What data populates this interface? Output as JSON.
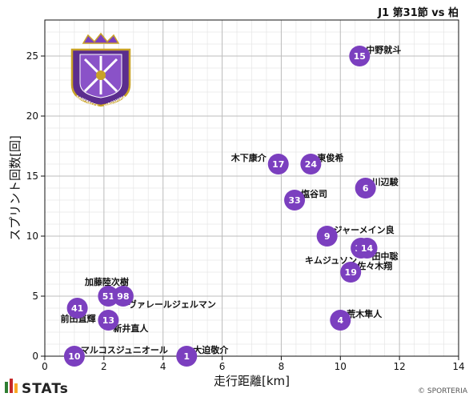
{
  "header": {
    "title": "J1 第31節 vs 柏"
  },
  "footer": {
    "brand": "STATs",
    "copyright": "© SPORTERIA"
  },
  "crest": {
    "left_text": "SANFRECCE",
    "right_text": "HIROSHIMA"
  },
  "colors": {
    "point": "#7b3fbf",
    "grid_major": "#bdbdbd",
    "grid_minor": "#e6e6e6"
  },
  "chart_data": {
    "type": "scatter",
    "xlabel": "走行距離[km]",
    "ylabel": "スプリント回数[回]",
    "xlim": [
      0,
      14
    ],
    "ylim": [
      0,
      28
    ],
    "xticks": [
      0,
      2,
      4,
      6,
      8,
      10,
      12,
      14
    ],
    "yticks": [
      0,
      5,
      10,
      15,
      20,
      25
    ],
    "grid": true,
    "points": [
      {
        "num": "15",
        "name": "中野就斗",
        "x": 10.65,
        "y": 25,
        "label_pos": "right"
      },
      {
        "num": "17",
        "name": "木下康介",
        "x": 7.9,
        "y": 16,
        "label_pos": "left"
      },
      {
        "num": "24",
        "name": "東俊希",
        "x": 9.0,
        "y": 16,
        "label_pos": "right"
      },
      {
        "num": "6",
        "name": "川辺駿",
        "x": 10.85,
        "y": 14,
        "label_pos": "right"
      },
      {
        "num": "33",
        "name": "塩谷司",
        "x": 8.45,
        "y": 13,
        "label_pos": "right"
      },
      {
        "num": "9",
        "name": "ジャーメイン良",
        "x": 9.55,
        "y": 10,
        "label_pos": "right"
      },
      {
        "num": "31",
        "name": "キムジュソン",
        "x": 10.7,
        "y": 9,
        "label_pos": "below-left"
      },
      {
        "num": "14",
        "name": "田中聡",
        "x": 10.9,
        "y": 9,
        "label_pos": "below-right"
      },
      {
        "num": "19",
        "name": "佐々木翔",
        "x": 10.35,
        "y": 7,
        "label_pos": "right"
      },
      {
        "num": "4",
        "name": "荒木隼人",
        "x": 10.0,
        "y": 3,
        "label_pos": "above-right"
      },
      {
        "num": "51",
        "name": "加藤陸次樹",
        "x": 2.15,
        "y": 5,
        "label_pos": "above"
      },
      {
        "num": "98",
        "name": "ヴァレールジェルマン",
        "x": 2.65,
        "y": 5,
        "label_pos": "below-right"
      },
      {
        "num": "41",
        "name": "前田直輝",
        "x": 1.1,
        "y": 4,
        "label_pos": "below"
      },
      {
        "num": "13",
        "name": "新井直人",
        "x": 2.15,
        "y": 3,
        "label_pos": "below-right"
      },
      {
        "num": "10",
        "name": "マルコスジュニオール",
        "x": 1.0,
        "y": 0,
        "label_pos": "right"
      },
      {
        "num": "1",
        "name": "大迫敬介",
        "x": 4.8,
        "y": 0,
        "label_pos": "above-right"
      }
    ]
  }
}
